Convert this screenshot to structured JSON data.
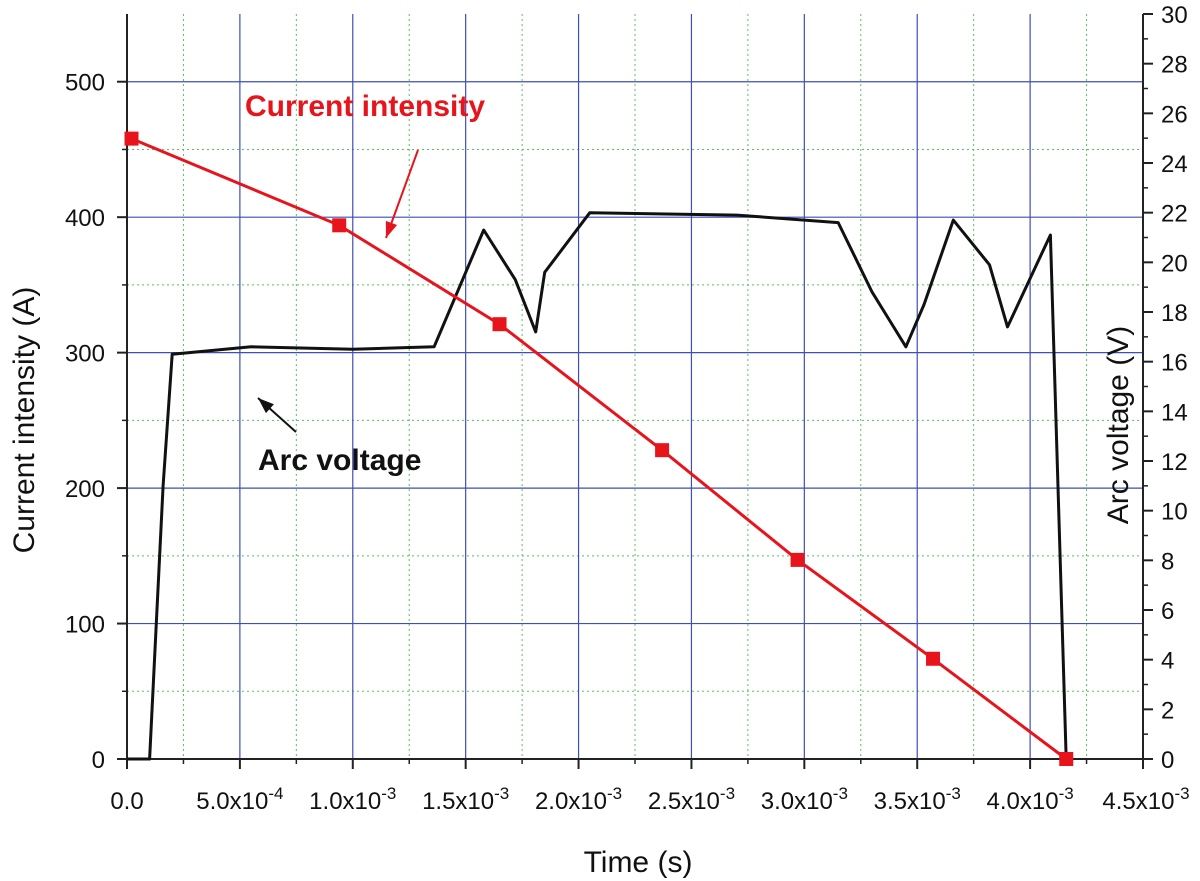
{
  "chart_data": {
    "type": "line",
    "xlabel": "Time (s)",
    "ylabel_left": "Current intensity (A)",
    "ylabel_right": "Arc voltage (V)",
    "xlim": [
      0,
      0.0045
    ],
    "ylim_left": [
      0,
      550
    ],
    "ylim_right": [
      0,
      30
    ],
    "x_ticks": [
      0,
      0.0005,
      0.001,
      0.0015,
      0.002,
      0.0025,
      0.003,
      0.0035,
      0.004,
      0.0045
    ],
    "x_tick_labels": [
      {
        "base": "0.0",
        "exp": ""
      },
      {
        "base": "5.0x10",
        "exp": "-4"
      },
      {
        "base": "1.0x10",
        "exp": "-3"
      },
      {
        "base": "1.5x10",
        "exp": "-3"
      },
      {
        "base": "2.0x10",
        "exp": "-3"
      },
      {
        "base": "2.5x10",
        "exp": "-3"
      },
      {
        "base": "3.0x10",
        "exp": "-3"
      },
      {
        "base": "3.5x10",
        "exp": "-3"
      },
      {
        "base": "4.0x10",
        "exp": "-3"
      },
      {
        "base": "4.5x10",
        "exp": "-3"
      }
    ],
    "y_left_ticks": [
      0,
      100,
      200,
      300,
      400,
      500
    ],
    "y_right_ticks": [
      0,
      2,
      4,
      6,
      8,
      10,
      12,
      14,
      16,
      18,
      20,
      22,
      24,
      26,
      28,
      30
    ],
    "grid": true,
    "colors": {
      "current": "#e8141c",
      "voltage": "#111111",
      "major_grid": "#3d4fb8",
      "minor_grid": "#5cbf5c",
      "axis": "#222222"
    },
    "series": [
      {
        "name": "Current intensity",
        "axis": "left",
        "marker": "square",
        "x": [
          2e-05,
          0.00094,
          0.00165,
          0.00237,
          0.00297,
          0.00357,
          0.00416
        ],
        "y": [
          458,
          394,
          321,
          228,
          147,
          74,
          0
        ]
      },
      {
        "name": "Arc voltage",
        "axis": "right",
        "marker": "none",
        "x": [
          0.0,
          0.0001,
          0.00016,
          0.0002,
          0.00055,
          0.001,
          0.00136,
          0.00158,
          0.00172,
          0.00181,
          0.00185,
          0.00205,
          0.0027,
          0.00315,
          0.0033,
          0.00345,
          0.00353,
          0.00366,
          0.00382,
          0.0039,
          0.00409,
          0.00416
        ],
        "y": [
          0,
          0,
          11,
          16.3,
          16.6,
          16.5,
          16.6,
          21.3,
          19.3,
          17.2,
          19.6,
          22.0,
          21.9,
          21.6,
          18.8,
          16.6,
          18.3,
          21.7,
          19.9,
          17.4,
          21.1,
          0
        ]
      }
    ],
    "annotations": [
      {
        "text": "Current intensity",
        "color": "#e8141c"
      },
      {
        "text": "Arc voltage",
        "color": "#111111"
      }
    ]
  }
}
